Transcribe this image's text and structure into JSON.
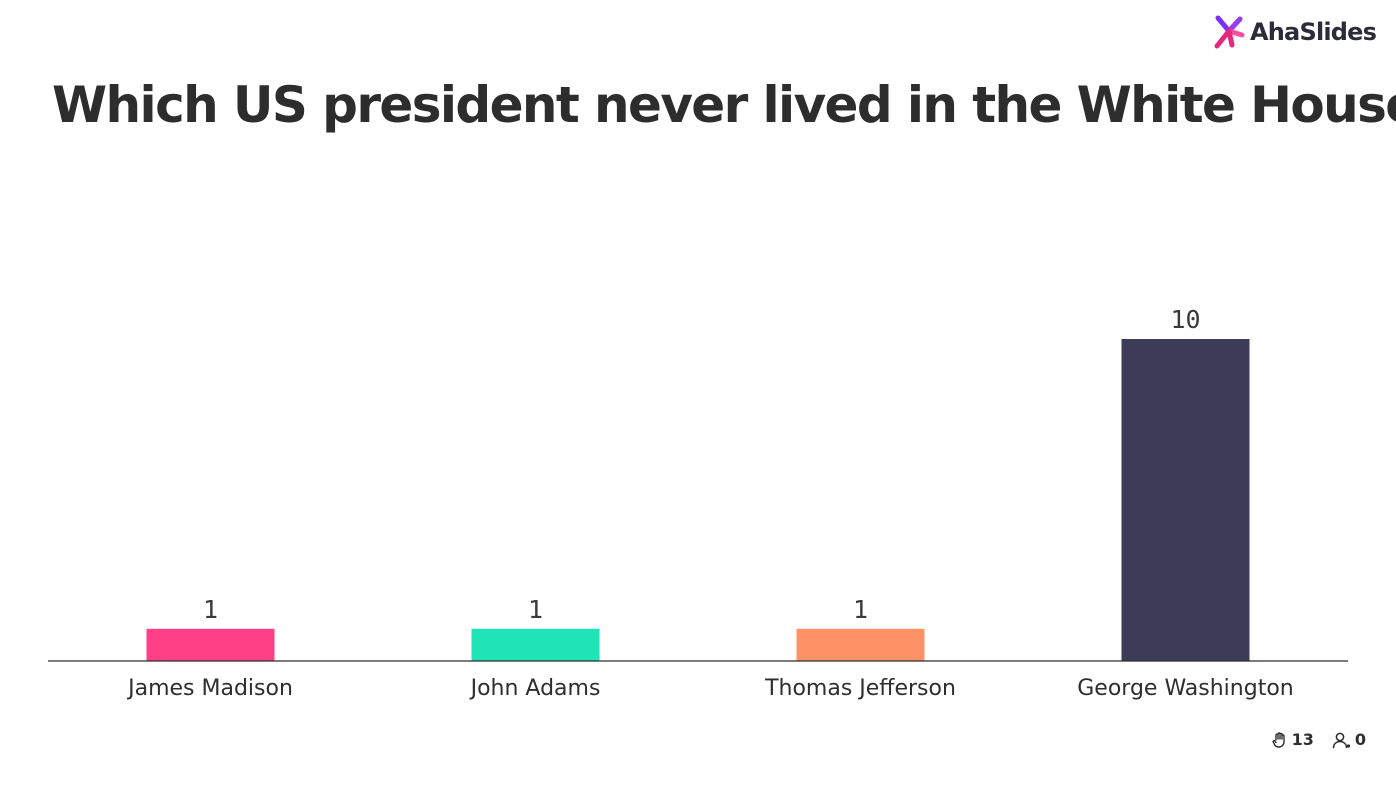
{
  "brand": {
    "name": "AhaSlides",
    "logo_icon": "ahaslides-logo-icon",
    "logo_colors": [
      "#7b2ff7",
      "#e6287a",
      "#ff4fa3"
    ]
  },
  "title": "Which US president never lived in the White House?",
  "chart_data": {
    "type": "bar",
    "title": "Which US president never lived in the White House?",
    "categories": [
      "James Madison",
      "John Adams",
      "Thomas Jefferson",
      "George Washington"
    ],
    "values": [
      1,
      1,
      1,
      10
    ],
    "colors": [
      "#ff3f86",
      "#1fe5b6",
      "#ff9166",
      "#3c3c57"
    ],
    "xlabel": "",
    "ylabel": "",
    "ylim": [
      0,
      10
    ],
    "grid": false,
    "legend": "none"
  },
  "footer": {
    "responses_icon": "hand-icon",
    "responses_count": "13",
    "participants_icon": "user-icon",
    "participants_count": "0"
  }
}
